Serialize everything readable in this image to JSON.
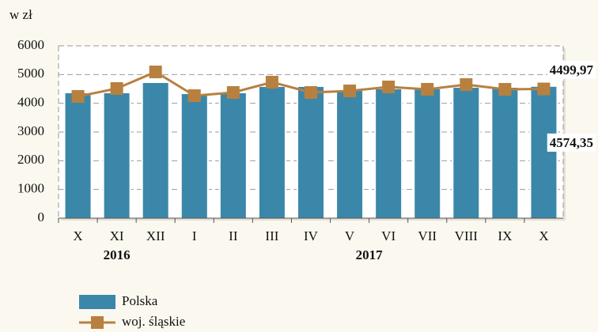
{
  "chart_data": {
    "type": "bar-line",
    "y_label": "w zł",
    "categories": [
      "X",
      "XI",
      "XII",
      "I",
      "II",
      "III",
      "IV",
      "V",
      "VI",
      "VII",
      "VIII",
      "IX",
      "X"
    ],
    "year_groups": [
      {
        "label": "2016",
        "from": 0,
        "to": 2
      },
      {
        "label": "2017",
        "from": 3,
        "to": 12
      }
    ],
    "series": [
      {
        "name": "Polska",
        "type": "bar",
        "color": "#3b87a9",
        "values": [
          4350,
          4350,
          4707,
          4320,
          4350,
          4570,
          4570,
          4430,
          4490,
          4490,
          4540,
          4540,
          4574.35
        ],
        "value_labels": [
          null,
          null,
          null,
          null,
          null,
          null,
          null,
          null,
          null,
          null,
          null,
          null,
          "4574,35"
        ]
      },
      {
        "name": "woj. śląskie",
        "type": "line",
        "color": "#b8803f",
        "values": [
          4240,
          4514,
          5092,
          4266,
          4377,
          4735,
          4377,
          4432,
          4570,
          4487,
          4652,
          4487,
          4499.97
        ],
        "value_labels": [
          null,
          null,
          null,
          null,
          null,
          null,
          null,
          null,
          null,
          null,
          null,
          null,
          "4499,97"
        ]
      }
    ],
    "ylim": [
      0,
      6000
    ],
    "yticks": [
      0,
      1000,
      2000,
      3000,
      4000,
      5000,
      6000
    ],
    "grid": true
  }
}
